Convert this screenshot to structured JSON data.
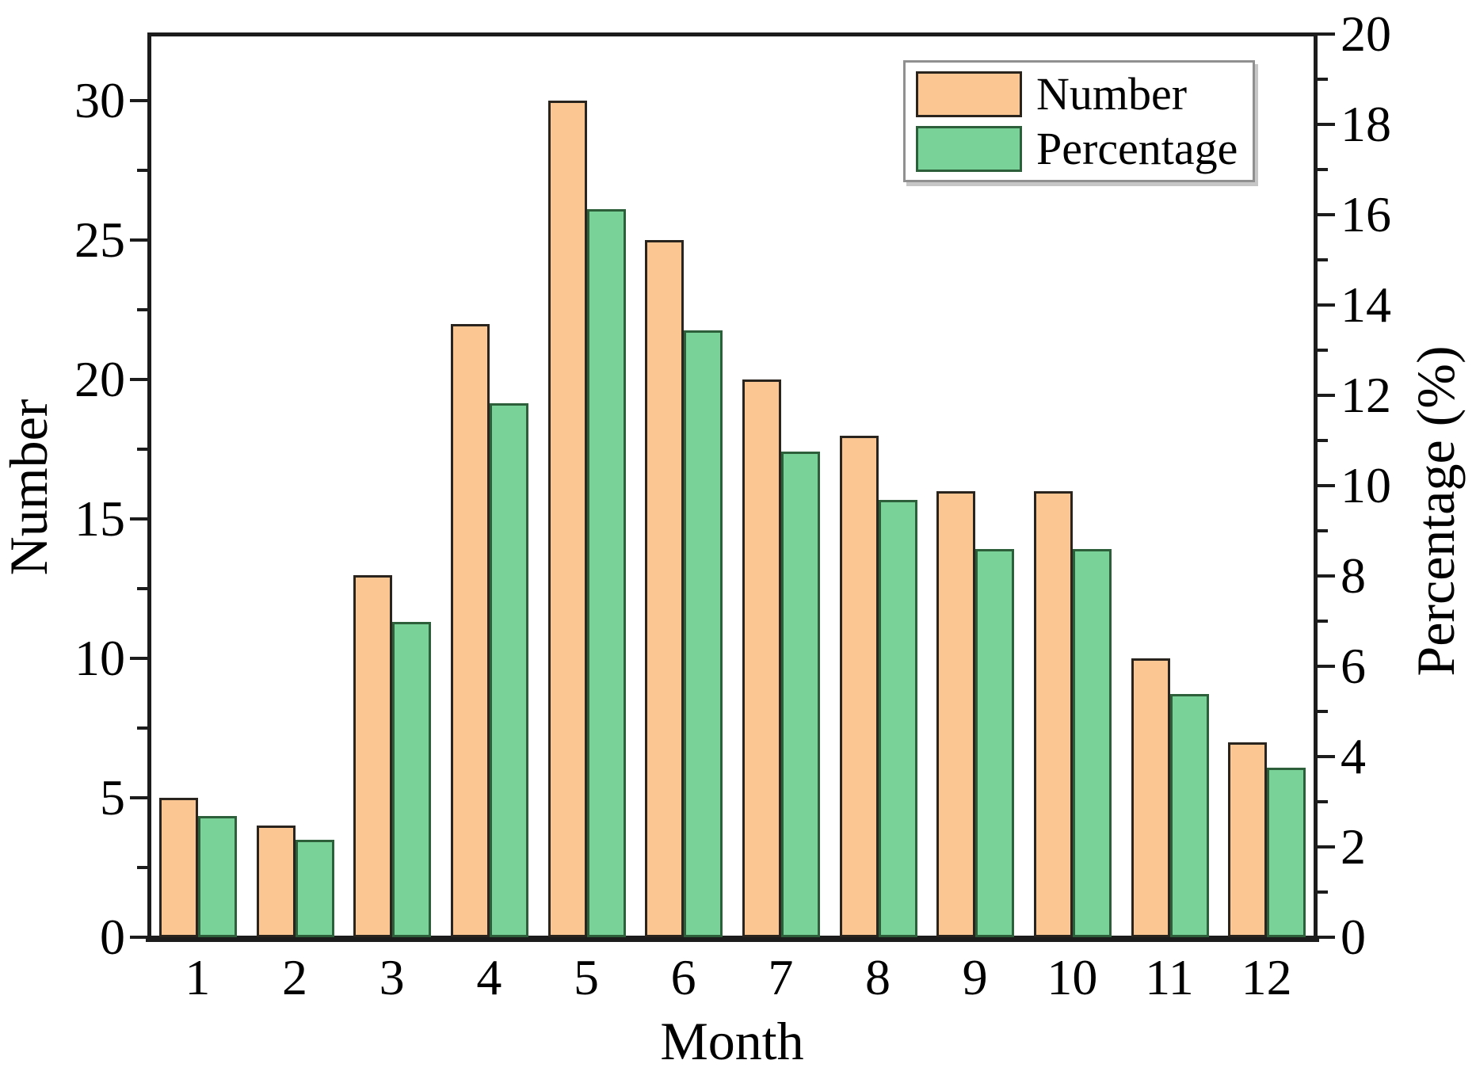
{
  "figure": {
    "background": "#ffffff"
  },
  "chart_data": {
    "type": "bar",
    "title": "",
    "categories": [
      "1",
      "2",
      "3",
      "4",
      "5",
      "6",
      "7",
      "8",
      "9",
      "10",
      "11",
      "12"
    ],
    "series": [
      {
        "name": "Number",
        "axis": "left",
        "color": "#FCC693",
        "border_color": "#2A241E",
        "values": [
          5,
          4,
          13,
          22,
          30,
          25,
          20,
          18,
          16,
          16,
          10,
          7
        ]
      },
      {
        "name": "Percentage",
        "axis": "right",
        "color": "#79D399",
        "border_color": "#2E5F3B",
        "values": [
          2.69,
          2.15,
          6.99,
          11.83,
          16.13,
          13.44,
          10.75,
          9.68,
          8.6,
          8.6,
          5.38,
          3.76
        ]
      }
    ],
    "x_axis": {
      "label": "Month"
    },
    "left_axis": {
      "label": "Number",
      "min": 0,
      "max": 32.4,
      "major_ticks": [
        0,
        5,
        10,
        15,
        20,
        25,
        30
      ],
      "minor_step": 2.5
    },
    "right_axis": {
      "label": "Percentage (%)",
      "min": 0,
      "max": 20,
      "major_ticks": [
        0,
        2,
        4,
        6,
        8,
        10,
        12,
        14,
        16,
        18,
        20
      ],
      "minor_step": 1
    },
    "legend": {
      "position": "top-right",
      "entries": [
        "Number",
        "Percentage"
      ]
    },
    "grid": false,
    "frame_color": "#1c1c1c"
  }
}
